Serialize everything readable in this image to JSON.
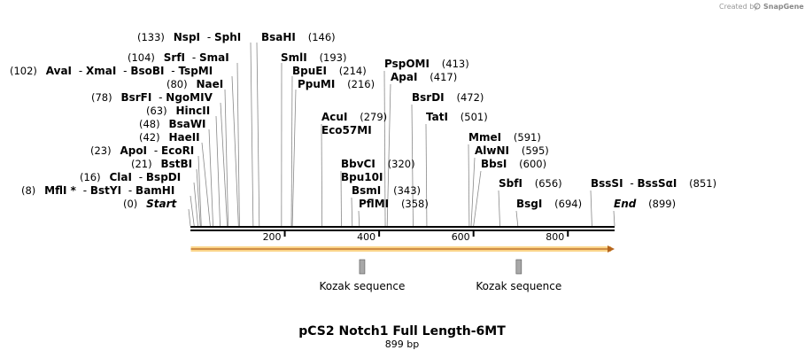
{
  "credit": {
    "prefix": "Created by",
    "brand": "SnapGene"
  },
  "title": "pCS2 Notch1 Full Length-6MT",
  "subtitle": "899 bp",
  "sequence_length": 899,
  "axis_ticks": [
    "200",
    "400",
    "600",
    "800"
  ],
  "features": [
    {
      "name": "Kozak sequence",
      "position": 364
    },
    {
      "name": "Kozak sequence",
      "position": 696
    }
  ],
  "orf": {
    "start": 1,
    "end": 899,
    "color": "#f0a830"
  },
  "sites": [
    {
      "pos": 0,
      "pos_label": "(0)",
      "names": [
        "Start"
      ],
      "italic": true
    },
    {
      "pos": 8,
      "pos_label": "(8)",
      "names": [
        "MflI *",
        "BstYI",
        "BamHI"
      ]
    },
    {
      "pos": 16,
      "pos_label": "(16)",
      "names": [
        "ClaI",
        "BspDI"
      ]
    },
    {
      "pos": 21,
      "pos_label": "(21)",
      "names": [
        "BstBI"
      ]
    },
    {
      "pos": 23,
      "pos_label": "(23)",
      "names": [
        "ApoI",
        "EcoRI"
      ]
    },
    {
      "pos": 42,
      "pos_label": "(42)",
      "names": [
        "HaeII"
      ]
    },
    {
      "pos": 48,
      "pos_label": "(48)",
      "names": [
        "BsaWI"
      ]
    },
    {
      "pos": 63,
      "pos_label": "(63)",
      "names": [
        "HincII"
      ]
    },
    {
      "pos": 78,
      "pos_label": "(78)",
      "names": [
        "BsrFI",
        "NgoMIV"
      ]
    },
    {
      "pos": 80,
      "pos_label": "(80)",
      "names": [
        "NaeI"
      ]
    },
    {
      "pos": 102,
      "pos_label": "(102)",
      "names": [
        "AvaI",
        "XmaI",
        "BsoBI",
        "TspMI"
      ]
    },
    {
      "pos": 104,
      "pos_label": "(104)",
      "names": [
        "SrfI",
        "SmaI"
      ]
    },
    {
      "pos": 133,
      "pos_label": "(133)",
      "names": [
        "NspI",
        "SphI"
      ]
    },
    {
      "pos": 146,
      "pos_label": "(146)",
      "names": [
        "BsaHI"
      ]
    },
    {
      "pos": 193,
      "pos_label": "(193)",
      "names": [
        "SmlI"
      ]
    },
    {
      "pos": 214,
      "pos_label": "(214)",
      "names": [
        "BpuEI"
      ]
    },
    {
      "pos": 216,
      "pos_label": "(216)",
      "names": [
        "PpuMI"
      ]
    },
    {
      "pos": 279,
      "pos_label": "(279)",
      "names": [
        "AcuI"
      ]
    },
    {
      "pos": 279,
      "pos_label": "",
      "names": [
        "Eco57MI"
      ]
    },
    {
      "pos": 320,
      "pos_label": "(320)",
      "names": [
        "BbvCI"
      ]
    },
    {
      "pos": 320,
      "pos_label": "",
      "names": [
        "Bpu10I"
      ]
    },
    {
      "pos": 343,
      "pos_label": "(343)",
      "names": [
        "BsmI"
      ]
    },
    {
      "pos": 358,
      "pos_label": "(358)",
      "names": [
        "PflMI"
      ]
    },
    {
      "pos": 413,
      "pos_label": "(413)",
      "names": [
        "PspOMI"
      ]
    },
    {
      "pos": 417,
      "pos_label": "(417)",
      "names": [
        "ApaI"
      ]
    },
    {
      "pos": 472,
      "pos_label": "(472)",
      "names": [
        "BsrDI"
      ]
    },
    {
      "pos": 501,
      "pos_label": "(501)",
      "names": [
        "TatI"
      ]
    },
    {
      "pos": 591,
      "pos_label": "(591)",
      "names": [
        "MmeI"
      ]
    },
    {
      "pos": 595,
      "pos_label": "(595)",
      "names": [
        "AlwNI"
      ]
    },
    {
      "pos": 600,
      "pos_label": "(600)",
      "names": [
        "BbsI"
      ]
    },
    {
      "pos": 656,
      "pos_label": "(656)",
      "names": [
        "SbfI"
      ]
    },
    {
      "pos": 694,
      "pos_label": "(694)",
      "names": [
        "BsgI"
      ]
    },
    {
      "pos": 851,
      "pos_label": "(851)",
      "names": [
        "BssSI",
        "BssSαI"
      ]
    },
    {
      "pos": 899,
      "pos_label": "(899)",
      "names": [
        "End"
      ],
      "italic": true
    }
  ]
}
